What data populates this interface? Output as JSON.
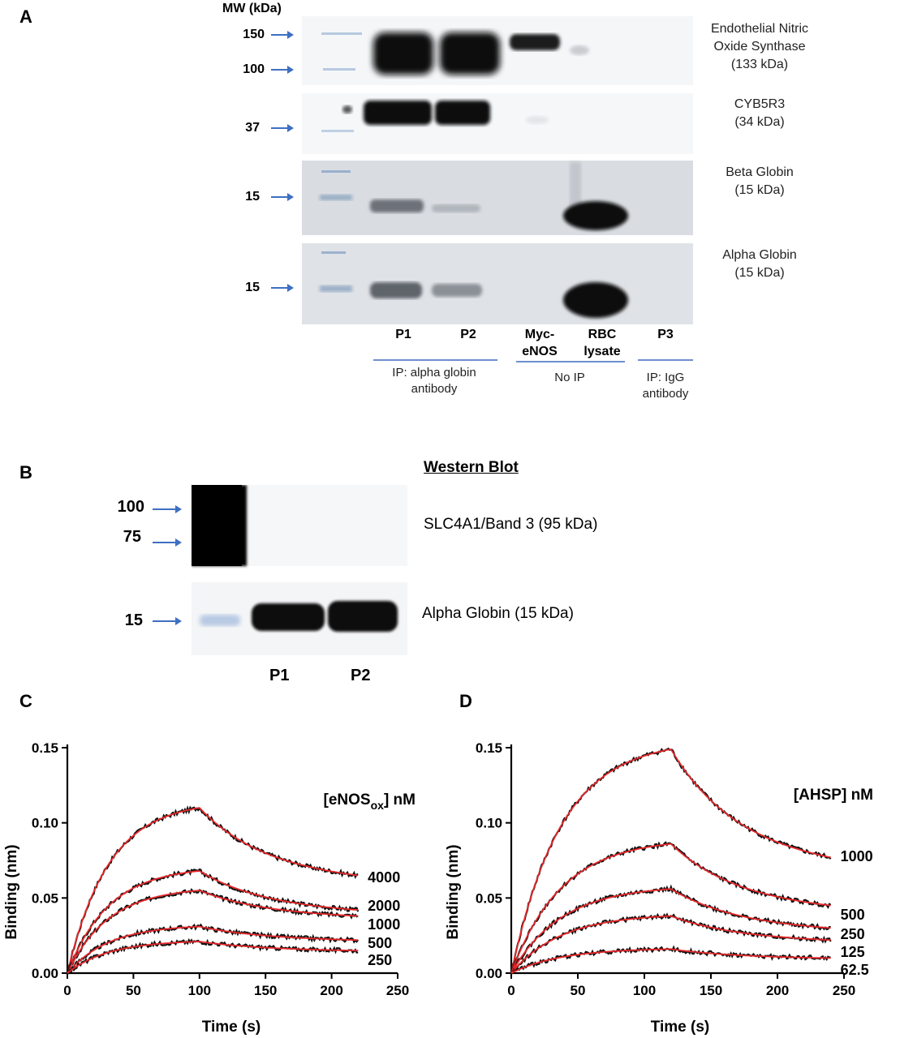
{
  "panelA": {
    "letter": "A",
    "mw_header": "MW (kDa)",
    "markers": [
      "150",
      "100",
      "37",
      "15",
      "15"
    ],
    "rows": [
      {
        "label": "Endothelial Nitric\nOxide Synthase\n(133 kDa)"
      },
      {
        "label": "CYB5R3\n(34 kDa)"
      },
      {
        "label": "Beta Globin\n(15 kDa)"
      },
      {
        "label": "Alpha Globin\n(15 kDa)"
      }
    ],
    "lanes": [
      "P1",
      "P2",
      "Myc-\neNOS",
      "RBC\nlysate",
      "P3"
    ],
    "groups": [
      "IP: alpha globin\nantibody",
      "No IP",
      "IP: IgG\nantibody"
    ]
  },
  "panelB": {
    "letter": "B",
    "title": "Western Blot",
    "markers": [
      "100",
      "75",
      "15"
    ],
    "rows": [
      "SLC4A1/Band 3 (95 kDa)",
      "Alpha Globin (15 kDa)"
    ],
    "lanes": [
      "P1",
      "P2"
    ]
  },
  "panelC": {
    "letter": "C",
    "legend_title": "[eNOS",
    "legend_sub": "ox",
    "legend_suffix": "] nM",
    "ylabel": "Binding (nm)",
    "xlabel": "Time (s)",
    "xticks": [
      "0",
      "50",
      "100",
      "150",
      "200",
      "250"
    ],
    "yticks": [
      "0.00",
      "0.05",
      "0.10",
      "0.15"
    ],
    "series_labels": [
      "4000",
      "2000",
      "1000",
      "500",
      "250"
    ]
  },
  "panelD": {
    "letter": "D",
    "legend_title": "[AHSP] nM",
    "ylabel": "Binding (nm)",
    "xlabel": "Time (s)",
    "xticks": [
      "0",
      "50",
      "100",
      "150",
      "200",
      "250"
    ],
    "yticks": [
      "0.00",
      "0.05",
      "0.10",
      "0.15"
    ],
    "series_labels": [
      "1000",
      "500",
      "250",
      "125",
      "62.5"
    ]
  },
  "chart_data": [
    {
      "type": "line",
      "xlabel": "Time (s)",
      "ylabel": "Binding (nm)",
      "xlim": [
        0,
        250
      ],
      "ylim": [
        0,
        0.15
      ],
      "association_end": 100,
      "x_end": 220,
      "series": [
        {
          "name": "4000",
          "peak": 0.11,
          "end": 0.065
        },
        {
          "name": "2000",
          "peak": 0.068,
          "end": 0.042
        },
        {
          "name": "1000",
          "peak": 0.055,
          "end": 0.038
        },
        {
          "name": "500",
          "peak": 0.031,
          "end": 0.022
        },
        {
          "name": "250",
          "peak": 0.021,
          "end": 0.015
        }
      ]
    },
    {
      "type": "line",
      "xlabel": "Time (s)",
      "ylabel": "Binding (nm)",
      "xlim": [
        0,
        250
      ],
      "ylim": [
        0,
        0.15
      ],
      "association_end": 120,
      "x_end": 240,
      "series": [
        {
          "name": "1000",
          "peak": 0.149,
          "end": 0.077
        },
        {
          "name": "500",
          "peak": 0.086,
          "end": 0.045
        },
        {
          "name": "250",
          "peak": 0.056,
          "end": 0.03
        },
        {
          "name": "125",
          "peak": 0.038,
          "end": 0.022
        },
        {
          "name": "62.5",
          "peak": 0.016,
          "end": 0.01
        }
      ]
    }
  ]
}
